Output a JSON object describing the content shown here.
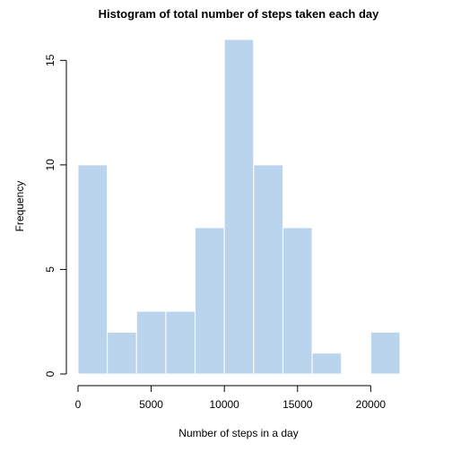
{
  "chart_data": {
    "type": "bar",
    "title": "Histogram of total number of steps taken each day",
    "xlabel": "Number of steps in a day",
    "ylabel": "Frequency",
    "bin_edges": [
      0,
      2000,
      4000,
      6000,
      8000,
      10000,
      12000,
      14000,
      16000,
      18000,
      20000,
      22000
    ],
    "values": [
      10,
      2,
      3,
      3,
      7,
      16,
      10,
      7,
      1,
      0,
      2
    ],
    "xlim": [
      0,
      22000
    ],
    "ylim": [
      0,
      16
    ],
    "x_ticks": [
      0,
      5000,
      10000,
      15000,
      20000
    ],
    "x_tick_labels": [
      "0",
      "5000",
      "10000",
      "15000",
      "20000"
    ],
    "y_ticks": [
      0,
      5,
      10,
      15
    ],
    "y_tick_labels": [
      "0",
      "5",
      "10",
      "15"
    ],
    "bar_color": "#bad4ee",
    "grid": false,
    "legend": "none"
  }
}
